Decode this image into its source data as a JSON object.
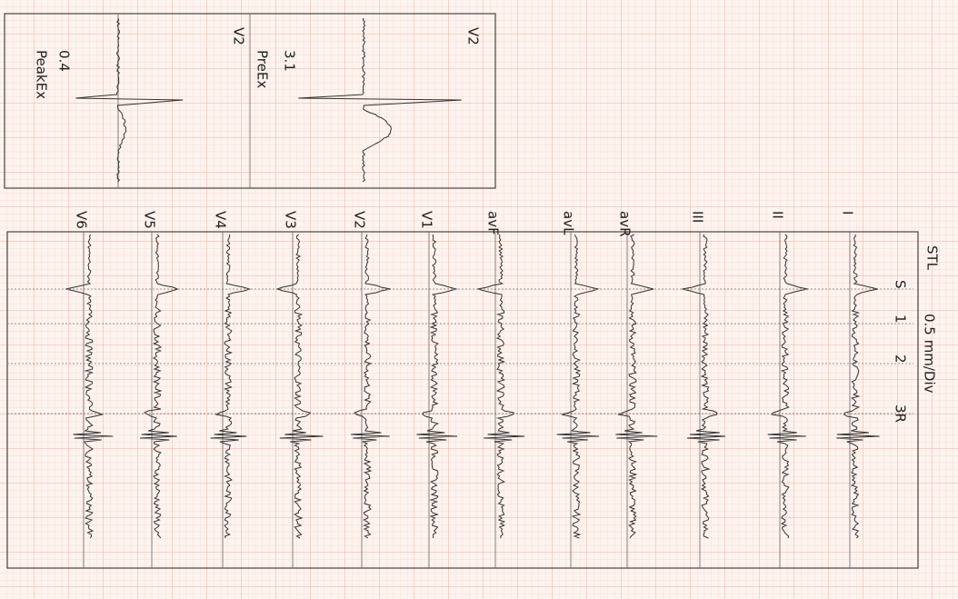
{
  "header": {
    "title": "STL",
    "scale": "0.5 mm/Div"
  },
  "markers": [
    "S",
    "1",
    "2",
    "3R"
  ],
  "leads": [
    "I",
    "II",
    "III",
    "avR",
    "avL",
    "avF",
    "V1",
    "V2",
    "V3",
    "V4",
    "V5",
    "V6"
  ],
  "panels": [
    {
      "lead": "V2",
      "value": 3.1,
      "stage": "PreEx"
    },
    {
      "lead": "V2",
      "value": 0.4,
      "stage": "PeakEx"
    }
  ]
}
